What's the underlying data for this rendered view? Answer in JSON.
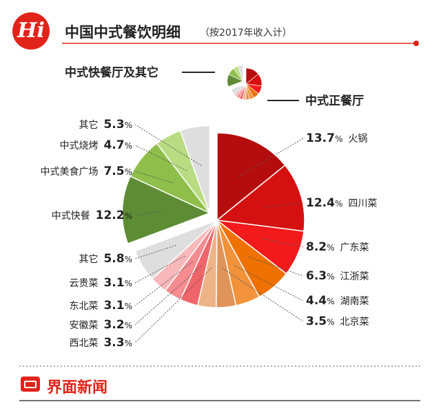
{
  "header": {
    "badge_text": "Hi",
    "title": "中国中式餐饮明细",
    "subtitle": "（按2017年收入计）"
  },
  "legend_thumbnail": {
    "fast_food_label": "中式快餐厅及其它",
    "formal_label": "中式正餐厅"
  },
  "footer": {
    "logo_text": "界面新闻"
  },
  "colors": {
    "brand_red": "#e2231a"
  },
  "chart_data": {
    "type": "pie",
    "title": "中国中式餐饮明细",
    "subtitle": "（按2017年收入计）",
    "unit": "%",
    "groups": [
      {
        "name": "中式正餐厅",
        "slices": [
          {
            "label": "火锅",
            "value": 13.7,
            "color": "#b50d0d"
          },
          {
            "label": "四川菜",
            "value": 12.4,
            "color": "#d41010"
          },
          {
            "label": "广东菜",
            "value": 8.2,
            "color": "#f21a1a"
          },
          {
            "label": "江浙菜",
            "value": 6.3,
            "color": "#ef7100"
          },
          {
            "label": "湖南菜",
            "value": 4.4,
            "color": "#f2923a"
          },
          {
            "label": "北京菜",
            "value": 3.5,
            "color": "#e0945a"
          },
          {
            "label": "西北菜",
            "value": 3.3,
            "color": "#eeb488"
          },
          {
            "label": "安徽菜",
            "value": 3.2,
            "color": "#f0656a"
          },
          {
            "label": "东北菜",
            "value": 3.1,
            "color": "#f58c90"
          },
          {
            "label": "云贵菜",
            "value": 3.1,
            "color": "#f8b8ba"
          },
          {
            "label": "其它",
            "value": 5.8,
            "color": "#dedede"
          }
        ]
      },
      {
        "name": "中式快餐厅及其它",
        "slices": [
          {
            "label": "中式快餐",
            "value": 12.2,
            "color": "#5e8c35"
          },
          {
            "label": "中式美食广场",
            "value": 7.5,
            "color": "#8fbf4a"
          },
          {
            "label": "中式烧烤",
            "value": 4.7,
            "color": "#b9dc82"
          },
          {
            "label": "其它",
            "value": 5.3,
            "color": "#dedede"
          }
        ]
      }
    ]
  }
}
